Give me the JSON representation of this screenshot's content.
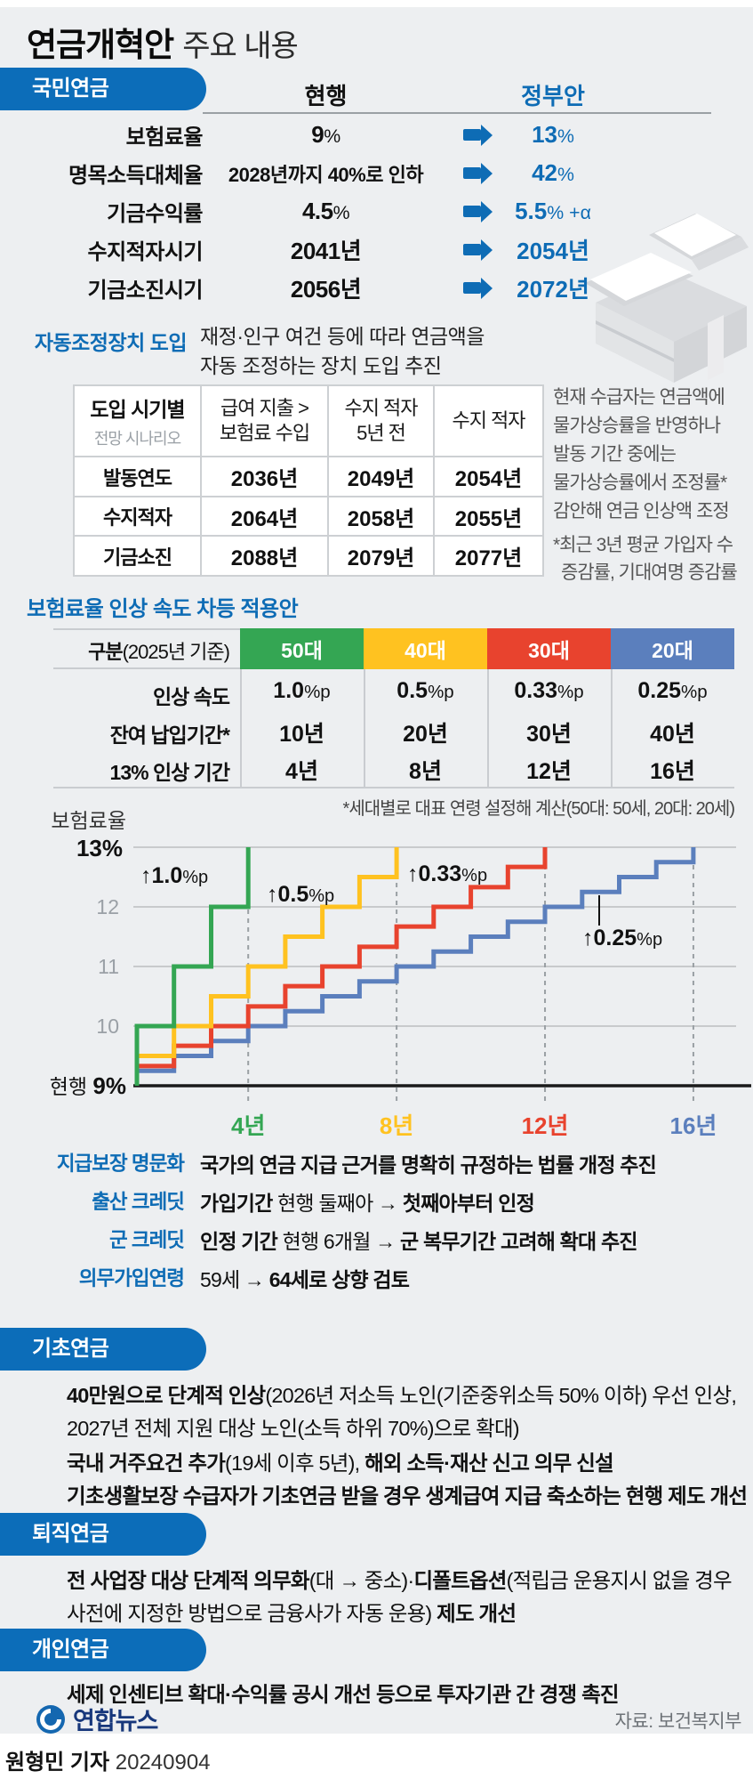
{
  "colors": {
    "accent": "#0e6cb5",
    "pill": "#0c6db9",
    "green": "#34a653",
    "yellow": "#ffc220",
    "red": "#e8432e",
    "blue": "#5b7fbd",
    "bg": "#edeff1"
  },
  "header": {
    "title_strong": "연금개혁안",
    "title_rest": "주요 내용"
  },
  "national": {
    "pill": "국민연금",
    "col_current": "현행",
    "col_gov": "정부안",
    "rows": [
      {
        "label": "보험료율",
        "cur": [
          {
            "t": "9",
            "b": 1
          },
          {
            "t": "%",
            "u": 1
          }
        ],
        "gov": [
          {
            "t": "13",
            "b": 1
          },
          {
            "t": "%",
            "u": 1
          }
        ]
      },
      {
        "label": "명목소득대체율",
        "cur": [
          {
            "t": "2028년까지 40%로 인하",
            "b": 1
          }
        ],
        "gov": [
          {
            "t": "42",
            "b": 1
          },
          {
            "t": "%",
            "u": 1
          }
        ]
      },
      {
        "label": "기금수익률",
        "cur": [
          {
            "t": "4.5",
            "b": 1
          },
          {
            "t": "%",
            "u": 1
          }
        ],
        "gov": [
          {
            "t": "5.5",
            "b": 1
          },
          {
            "t": "% +α",
            "u": 1
          }
        ]
      },
      {
        "label": "수지적자시기",
        "cur": [
          {
            "t": "2041년",
            "b": 1
          }
        ],
        "gov": [
          {
            "t": "2054년",
            "b": 1
          }
        ]
      },
      {
        "label": "기금소진시기",
        "cur": [
          {
            "t": "2056년",
            "b": 1
          }
        ],
        "gov": [
          {
            "t": "2072년",
            "b": 1
          }
        ]
      }
    ]
  },
  "auto": {
    "label": "자동조정장치 도입",
    "desc_lines": [
      "재정·인구 여건 등에 따라 연금액을",
      "자동 조정하는 장치 도입 추진"
    ],
    "table": {
      "h1_main": "도입 시기별",
      "h1_sub": "전망 시나리오",
      "h2": [
        "급여 지출 >",
        "보험료 수입"
      ],
      "h3": [
        "수지 적자",
        "5년 전"
      ],
      "h4": "수지 적자",
      "rows": [
        {
          "label": "발동연도",
          "v": [
            "2036년",
            "2049년",
            "2054년"
          ]
        },
        {
          "label": "수지적자",
          "v": [
            "2064년",
            "2058년",
            "2055년"
          ]
        },
        {
          "label": "기금소진",
          "v": [
            "2088년",
            "2079년",
            "2077년"
          ]
        }
      ]
    },
    "note_lines": [
      "현재 수급자는 연금액에",
      "물가상승률을 반영하나",
      "발동 기간 중에는",
      "물가상승률에서 조정률*",
      "감안해 연금 인상액 조정"
    ],
    "footnote_lines": [
      "*최근 3년 평균 가입자 수",
      "증감률, 기대여명 증감률"
    ]
  },
  "differential": {
    "title": "보험료율 인상 속도 차등 적용안",
    "col_label": [
      {
        "t": "구분",
        "b": 1
      },
      {
        "t": "(2025년 기준)",
        "b": 0
      }
    ],
    "generations": [
      {
        "name": "50대",
        "color": "#34a653"
      },
      {
        "name": "40대",
        "color": "#ffc220"
      },
      {
        "name": "30대",
        "color": "#e8432e"
      },
      {
        "name": "20대",
        "color": "#5b7fbd"
      }
    ],
    "rows": [
      {
        "label": "인상 속도",
        "values": [
          [
            {
              "t": "1.0",
              "b": 1
            },
            {
              "t": "%p",
              "u": 1
            }
          ],
          [
            {
              "t": "0.5",
              "b": 1
            },
            {
              "t": "%p",
              "u": 1
            }
          ],
          [
            {
              "t": "0.33",
              "b": 1
            },
            {
              "t": "%p",
              "u": 1
            }
          ],
          [
            {
              "t": "0.25",
              "b": 1
            },
            {
              "t": "%p",
              "u": 1
            }
          ]
        ]
      },
      {
        "label": "잔여 납입기간*",
        "values": [
          [
            {
              "t": "10년",
              "b": 1
            }
          ],
          [
            {
              "t": "20년",
              "b": 1
            }
          ],
          [
            {
              "t": "30년",
              "b": 1
            }
          ],
          [
            {
              "t": "40년",
              "b": 1
            }
          ]
        ]
      },
      {
        "label": "13% 인상 기간",
        "values": [
          [
            {
              "t": "4년",
              "b": 1
            }
          ],
          [
            {
              "t": "8년",
              "b": 1
            }
          ],
          [
            {
              "t": "12년",
              "b": 1
            }
          ],
          [
            {
              "t": "16년",
              "b": 1
            }
          ]
        ]
      }
    ],
    "footnote": "*세대별로 대표 연령 설정해 계산(50대: 50세, 20대: 20세)"
  },
  "chart_data": {
    "type": "line",
    "subtype": "step",
    "ylabel": "보험료율",
    "y_top_label": "13%",
    "baseline_label_light": "현행 ",
    "baseline_label_bold": "9%",
    "baseline_value": 9,
    "ylim": [
      9,
      13
    ],
    "y_ticks": [
      10,
      11,
      12
    ],
    "grid": true,
    "legend": false,
    "x_ticks": [
      {
        "label": "4년",
        "year": 4,
        "color": "#34a653"
      },
      {
        "label": "8년",
        "year": 8,
        "color": "#ffc220"
      },
      {
        "label": "12년",
        "year": 12,
        "color": "#e8432e"
      },
      {
        "label": "16년",
        "year": 16,
        "color": "#5b7fbd"
      }
    ],
    "series": [
      {
        "name": "20대",
        "color": "#5b7fbd",
        "increment": 0.25,
        "years": 16,
        "annotation": "↑0.25%p",
        "values": [
          9.25,
          9.5,
          9.75,
          10,
          10.25,
          10.5,
          10.75,
          11,
          11.25,
          11.5,
          11.75,
          12,
          12.25,
          12.5,
          12.75,
          13
        ]
      },
      {
        "name": "30대",
        "color": "#e8432e",
        "increment": 0.33,
        "years": 12,
        "annotation": "↑0.33%p",
        "values": [
          9.33,
          9.67,
          10,
          10.33,
          10.67,
          11,
          11.33,
          11.67,
          12,
          12.33,
          12.67,
          13
        ]
      },
      {
        "name": "40대",
        "color": "#ffc220",
        "increment": 0.5,
        "years": 8,
        "annotation": "↑0.5%p",
        "values": [
          9.5,
          10,
          10.5,
          11,
          11.5,
          12,
          12.5,
          13
        ]
      },
      {
        "name": "50대",
        "color": "#34a653",
        "increment": 1.0,
        "years": 4,
        "annotation": "↑1.0%p",
        "values": [
          10,
          11,
          12,
          13
        ]
      }
    ]
  },
  "credits": {
    "rows": [
      {
        "label": "지급보장 명문화",
        "segments": [
          {
            "t": "국가의 연금 지급 근거를 명확히 규정하는 법률 개정 추진",
            "b": 1
          }
        ]
      },
      {
        "label": "출산 크레딧",
        "segments": [
          {
            "t": "가입기간",
            "b": 1
          },
          {
            "t": " 현행 둘째아 → ",
            "b": 0
          },
          {
            "t": "첫째아부터 인정",
            "b": 1
          }
        ]
      },
      {
        "label": "군 크레딧",
        "segments": [
          {
            "t": "인정 기간",
            "b": 1
          },
          {
            "t": " 현행 6개월 → ",
            "b": 0
          },
          {
            "t": "군 복무기간 고려해 확대 추진",
            "b": 1
          }
        ]
      },
      {
        "label": "의무가입연령",
        "segments": [
          {
            "t": "59세 → ",
            "b": 0
          },
          {
            "t": "64세로 상향 검토",
            "b": 1
          }
        ]
      }
    ]
  },
  "basic": {
    "pill": "기초연금",
    "item1": [
      {
        "t": "40만원으로 단계적 인상",
        "b": 1
      },
      {
        "t": "(2026년 저소득 노인(기준중위소득 50% 이하) 우선 인상,",
        "b": 0
      },
      {
        "nl": 1
      },
      {
        "t": "2027년 전체 지원 대상 노인(소득 하위 70%)으로 확대)",
        "b": 0
      }
    ],
    "item2": [
      {
        "t": "국내 거주요건 추가",
        "b": 1
      },
      {
        "t": "(19세 이후 5년), ",
        "b": 0
      },
      {
        "t": "해외 소득·재산 신고 의무 신설",
        "b": 1
      }
    ],
    "item3": [
      {
        "t": "기초생활보장 수급자가 기초연금 받을 경우 생계급여 지급 축소하는 현행 제도 개선",
        "b": 1
      }
    ]
  },
  "retire": {
    "pill": "퇴직연금",
    "body": [
      {
        "t": "전 사업장 대상 단계적 의무화",
        "b": 1
      },
      {
        "t": "(대 → 중소)·",
        "b": 0
      },
      {
        "t": "디폴트옵션",
        "b": 1
      },
      {
        "t": "(적립금 운용지시 없을 경우",
        "b": 0
      },
      {
        "nl": 1
      },
      {
        "t": "사전에 지정한 방법으로 금융사가 자동 운용) ",
        "b": 0
      },
      {
        "t": "제도 개선",
        "b": 1
      }
    ]
  },
  "personal": {
    "pill": "개인연금",
    "body": [
      {
        "t": "세제 인센티브 확대·수익률 공시 개선 등으로 투자기관 간 경쟁 촉진",
        "b": 1
      }
    ]
  },
  "footer": {
    "logo_text": "연합뉴스",
    "source": "자료: 보건복지부",
    "byline_bold": "원형민 기자",
    "byline_date": "20240904"
  }
}
